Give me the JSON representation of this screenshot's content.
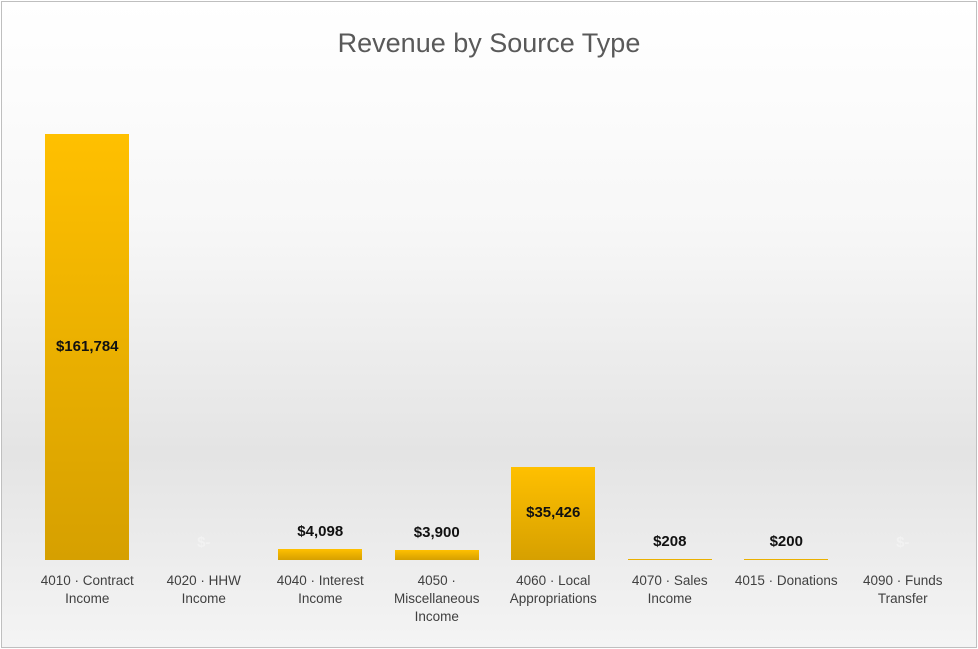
{
  "chart_data": {
    "type": "bar",
    "title": "Revenue by Source Type",
    "categories": [
      "4010 · Contract Income",
      "4020 · HHW Income",
      "4040 · Interest Income",
      "4050 · Miscellaneous Income",
      "4060 · Local Appropriations",
      "4070 · Sales Income",
      "4015 · Donations",
      "4090 · Funds Transfer"
    ],
    "values": [
      161784,
      0,
      4098,
      3900,
      35426,
      208,
      200,
      0
    ],
    "value_labels": [
      "$161,784",
      "$-",
      "$4,098",
      "$3,900",
      "$35,426",
      "$208",
      "$200",
      "$-"
    ],
    "color": "#ffc000",
    "ylim": [
      0,
      174300
    ]
  }
}
